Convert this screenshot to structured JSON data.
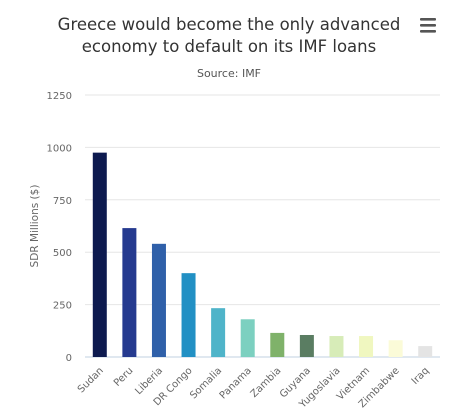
{
  "chart_data": {
    "type": "bar",
    "title": "Greece would become the only advanced economy to default on its IMF loans",
    "title_lines": [
      "Greece would become the only advanced",
      "economy to default on its IMF loans"
    ],
    "subtitle": "Source: IMF",
    "xlabel": "",
    "ylabel": "SDR Millions ($)",
    "ylim": [
      0,
      1250
    ],
    "yticks": [
      0,
      250,
      500,
      750,
      1000,
      1250
    ],
    "grid": true,
    "legend": "none",
    "categories": [
      "Sudan",
      "Peru",
      "Liberia",
      "DR Congo",
      "Somalia",
      "Panama",
      "Zambia",
      "Guyana",
      "Yugoslavia",
      "Vietnam",
      "Zimbabwe",
      "Iraq"
    ],
    "values": [
      975,
      615,
      540,
      400,
      233,
      180,
      115,
      105,
      100,
      100,
      80,
      52
    ],
    "colors": [
      "#0d1a4f",
      "#253a8f",
      "#2f60a9",
      "#2290c4",
      "#4fb4c9",
      "#7cd0c0",
      "#7fb26a",
      "#5a7d62",
      "#d7ecb8",
      "#f0f7c0",
      "#fbfbd8",
      "#e4e4e4"
    ]
  },
  "menu": {
    "icon": "hamburger-menu-icon"
  }
}
